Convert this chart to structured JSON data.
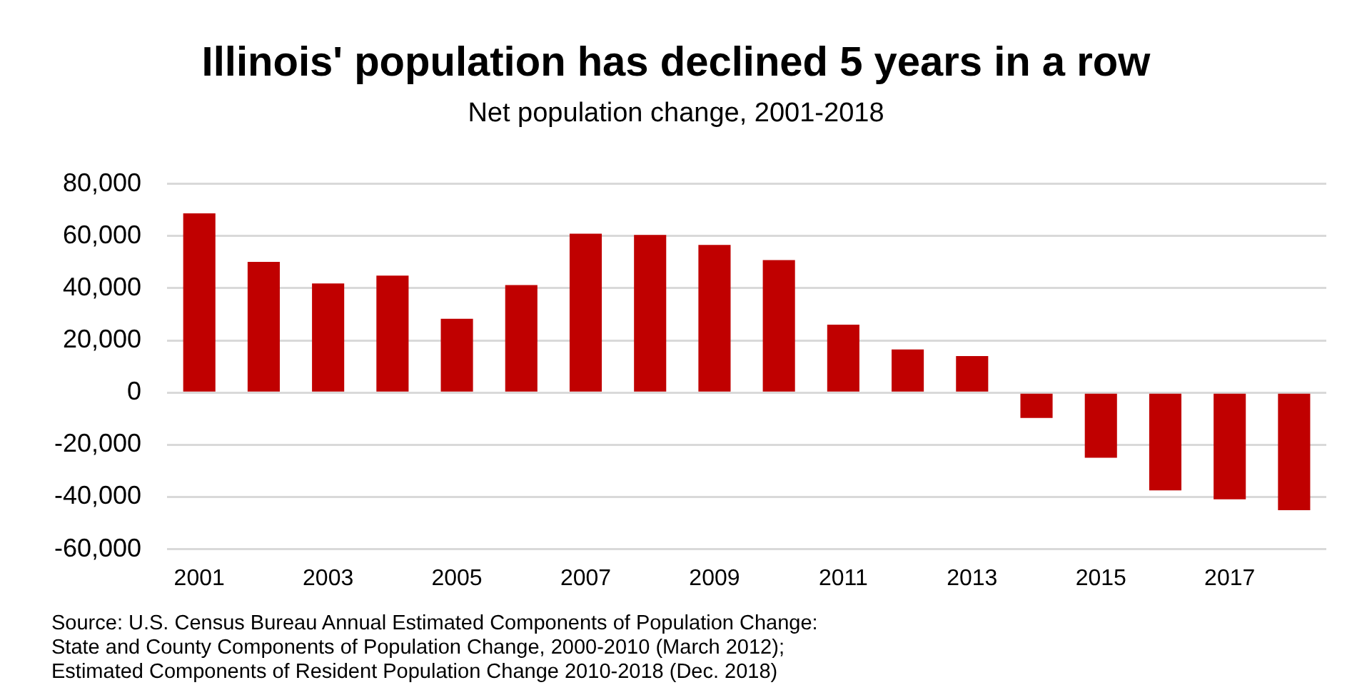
{
  "chart_data": {
    "type": "bar",
    "title": "Illinois' population has declined 5 years in a row",
    "subtitle": "Net population change, 2001-2018",
    "categories": [
      "2001",
      null,
      "2003",
      null,
      "2005",
      null,
      "2007",
      null,
      "2009",
      null,
      "2011",
      null,
      "2013",
      null,
      "2015",
      null,
      "2017",
      null
    ],
    "values": [
      68700,
      50100,
      41800,
      44800,
      28300,
      41200,
      60900,
      60400,
      56600,
      50800,
      26000,
      16500,
      14000,
      -9700,
      -25000,
      -37500,
      -40900,
      -45100
    ],
    "color": "#c00000",
    "ylim": [
      -60000,
      80000
    ],
    "yticks": [
      {
        "value": -60000,
        "label": "-60,000"
      },
      {
        "value": -40000,
        "label": "-40,000"
      },
      {
        "value": -20000,
        "label": "-20,000"
      },
      0,
      {
        "value": 20000,
        "label": "20,000"
      },
      {
        "value": 40000,
        "label": "40,000"
      },
      {
        "value": 60000,
        "label": "60,000"
      },
      {
        "value": 80000,
        "label": "80,000"
      }
    ],
    "grid": "y",
    "annotations": [
      "Source: U.S. Census Bureau Annual Estimated Components of Population Change:\nState and County Components of Population Change, 2000-2010 (March 2012);\nEstimated Components of Resident Population Change 2010-2018 (Dec. 2018)"
    ]
  }
}
